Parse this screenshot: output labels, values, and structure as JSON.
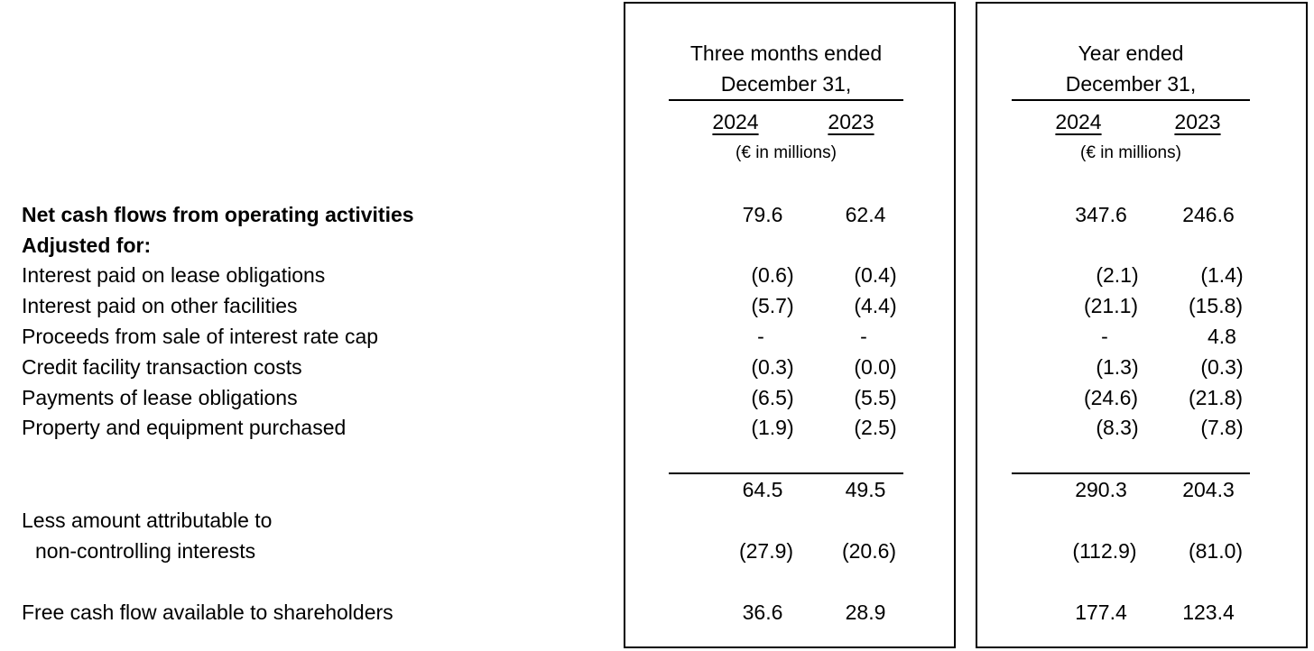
{
  "periods": [
    {
      "heading_line1": "Three months ended",
      "heading_line2": "December 31,",
      "year_a": "2024",
      "year_b": "2023",
      "unit": "(€ in millions)"
    },
    {
      "heading_line1": "Year ended",
      "heading_line2": "December 31,",
      "year_a": "2024",
      "year_b": "2023",
      "unit": "(€ in millions)"
    }
  ],
  "rows": [
    {
      "label": "Net cash flows from operating activities",
      "bold": true,
      "values": [
        "79.6",
        "62.4",
        "347.6",
        "246.6"
      ]
    },
    {
      "label": "Adjusted for:",
      "bold": true,
      "values": [
        "",
        "",
        "",
        ""
      ]
    },
    {
      "label": "Interest paid on lease obligations",
      "values": [
        "(0.6)",
        "(0.4)",
        "(2.1)",
        "(1.4)"
      ]
    },
    {
      "label": "Interest paid on other facilities",
      "values": [
        "(5.7)",
        "(4.4)",
        "(21.1)",
        "(15.8)"
      ]
    },
    {
      "label": "Proceeds from sale of interest rate cap",
      "values": [
        "-",
        "-",
        "-",
        "4.8"
      ]
    },
    {
      "label": "Credit facility transaction costs",
      "values": [
        "(0.3)",
        "(0.0)",
        "(1.3)",
        "(0.3)"
      ]
    },
    {
      "label": "Payments of lease obligations",
      "values": [
        "(6.5)",
        "(5.5)",
        "(24.6)",
        "(21.8)"
      ]
    },
    {
      "label": "Property and equipment purchased",
      "values": [
        "(1.9)",
        "(2.5)",
        "(8.3)",
        "(7.8)"
      ]
    },
    {
      "label": "",
      "values": [
        "64.5",
        "49.5",
        "290.3",
        "204.3"
      ]
    },
    {
      "label": "Less amount attributable to",
      "values": [
        "",
        "",
        "",
        ""
      ]
    },
    {
      "label": "non-controlling interests",
      "values": [
        "(27.9)",
        "(20.6)",
        "(112.9)",
        "(81.0)"
      ]
    },
    {
      "label": "Free cash flow available to shareholders",
      "values": [
        "36.6",
        "28.9",
        "177.4",
        "123.4"
      ]
    }
  ]
}
